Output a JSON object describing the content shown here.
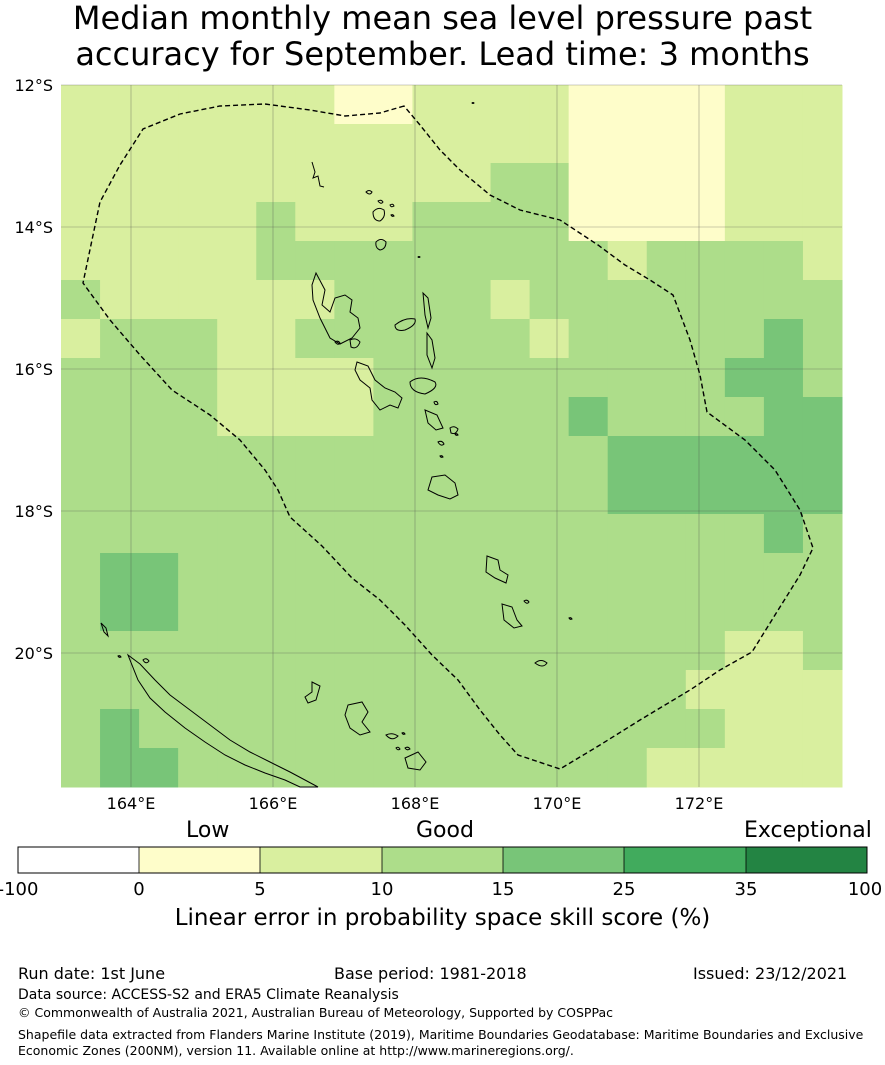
{
  "title": {
    "line1": "Median monthly mean sea level pressure past",
    "line2": "accuracy for September. Lead time: 3 months"
  },
  "map": {
    "lat_labels": [
      "12°S",
      "14°S",
      "16°S",
      "18°S",
      "20°S"
    ],
    "lon_labels": [
      "164°E",
      "166°E",
      "168°E",
      "170°E",
      "172°E"
    ],
    "colors": {
      "lt0": "#ffffff",
      "c0_5": "#fefdca",
      "c5_10": "#d9ef9f",
      "c10_15": "#addd8a",
      "c15_25": "#78c578",
      "c25_35": "#41ab5d",
      "c35_100": "#238443",
      "eez": "#000000"
    }
  },
  "colorbar": {
    "categories": {
      "low": "Low",
      "good": "Good",
      "exceptional": "Exceptional"
    },
    "ticks": [
      "-100",
      "0",
      "5",
      "10",
      "15",
      "25",
      "35",
      "100"
    ],
    "label": "Linear error in probability space skill score (%)"
  },
  "footer": {
    "run_date": "Run date: 1st June",
    "base_period": "Base period: 1981-2018",
    "issued": "Issued: 23/12/2021",
    "data_source": "Data source: ACCESS-S2 and ERA5 Climate Reanalysis",
    "copyright": "© Commonwealth of Australia 2021, Australian Bureau of Meteorology, Supported by COSPPac",
    "shapefile_line1": "Shapefile data extracted from Flanders Marine Institute (2019), Maritime Boundaries Geodatabase: Maritime Boundaries and Exclusive",
    "shapefile_line2": "Economic Zones (200NM), version 11. Available online at http://www.marineregions.org/."
  }
}
